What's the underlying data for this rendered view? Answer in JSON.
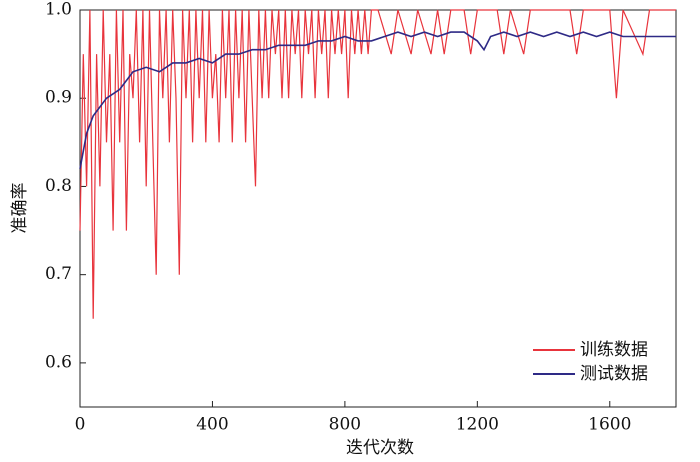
{
  "chart_data": {
    "type": "line",
    "xlabel": "迭代次数",
    "ylabel": "准确率",
    "xlim": [
      0,
      1800
    ],
    "xticks": [
      0,
      400,
      800,
      1200,
      1600
    ],
    "ylim": [
      0.55,
      1.0
    ],
    "yticks": [
      0.6,
      0.7,
      0.8,
      0.9,
      {
        "value": 1,
        "label": "1.0"
      }
    ],
    "legend": "lower right",
    "series": [
      {
        "name": "训练数据",
        "color": "#e8343c",
        "x": [
          0,
          10,
          20,
          30,
          40,
          50,
          60,
          70,
          80,
          90,
          100,
          110,
          120,
          130,
          140,
          150,
          160,
          170,
          180,
          190,
          200,
          210,
          220,
          230,
          240,
          250,
          260,
          270,
          280,
          290,
          300,
          310,
          320,
          330,
          340,
          350,
          360,
          370,
          380,
          390,
          400,
          410,
          420,
          430,
          440,
          450,
          460,
          470,
          480,
          490,
          500,
          510,
          520,
          530,
          540,
          550,
          560,
          570,
          580,
          590,
          600,
          610,
          620,
          630,
          640,
          650,
          660,
          670,
          680,
          690,
          700,
          710,
          720,
          730,
          740,
          750,
          760,
          770,
          780,
          790,
          800,
          810,
          820,
          830,
          840,
          850,
          860,
          870,
          880,
          900,
          940,
          960,
          1000,
          1020,
          1060,
          1080,
          1100,
          1120,
          1160,
          1180,
          1200,
          1260,
          1280,
          1300,
          1340,
          1360,
          1480,
          1500,
          1520,
          1600,
          1620,
          1640,
          1700,
          1720,
          1800
        ],
        "values": [
          0.75,
          0.95,
          0.8,
          1.0,
          0.65,
          0.95,
          0.8,
          1.0,
          0.85,
          0.95,
          0.75,
          1.0,
          0.85,
          1.0,
          0.75,
          0.95,
          0.9,
          1.0,
          0.85,
          1.0,
          0.8,
          1.0,
          0.85,
          0.7,
          1.0,
          0.9,
          1.0,
          0.85,
          1.0,
          0.9,
          0.7,
          1.0,
          0.9,
          1.0,
          0.85,
          1.0,
          0.9,
          1.0,
          0.85,
          1.0,
          0.9,
          0.95,
          0.85,
          1.0,
          0.9,
          1.0,
          0.85,
          1.0,
          0.9,
          1.0,
          0.85,
          1.0,
          0.9,
          0.8,
          1.0,
          0.9,
          1.0,
          0.9,
          1.0,
          0.95,
          1.0,
          0.9,
          1.0,
          0.9,
          1.0,
          0.95,
          1.0,
          0.9,
          1.0,
          0.95,
          1.0,
          0.9,
          1.0,
          0.95,
          1.0,
          0.9,
          1.0,
          0.95,
          1.0,
          0.95,
          1.0,
          0.9,
          1.0,
          0.95,
          1.0,
          0.95,
          1.0,
          0.95,
          1.0,
          1.0,
          0.95,
          1.0,
          0.95,
          1.0,
          0.95,
          1.0,
          0.95,
          1.0,
          1.0,
          0.95,
          1.0,
          1.0,
          0.95,
          1.0,
          0.95,
          1.0,
          1.0,
          0.95,
          1.0,
          1.0,
          0.9,
          1.0,
          0.95,
          1.0,
          1.0
        ]
      },
      {
        "name": "测试数据",
        "color": "#2e2a86",
        "x": [
          0,
          20,
          40,
          80,
          120,
          160,
          200,
          240,
          280,
          320,
          360,
          400,
          440,
          480,
          520,
          560,
          600,
          640,
          680,
          720,
          760,
          800,
          840,
          880,
          920,
          960,
          1000,
          1040,
          1080,
          1120,
          1160,
          1200,
          1220,
          1240,
          1280,
          1320,
          1360,
          1400,
          1440,
          1480,
          1520,
          1560,
          1600,
          1640,
          1680,
          1720,
          1760,
          1800
        ],
        "values": [
          0.82,
          0.86,
          0.88,
          0.9,
          0.91,
          0.93,
          0.935,
          0.93,
          0.94,
          0.94,
          0.945,
          0.94,
          0.95,
          0.95,
          0.955,
          0.955,
          0.96,
          0.96,
          0.96,
          0.965,
          0.965,
          0.97,
          0.965,
          0.965,
          0.97,
          0.975,
          0.97,
          0.975,
          0.97,
          0.975,
          0.975,
          0.965,
          0.955,
          0.97,
          0.975,
          0.97,
          0.975,
          0.97,
          0.975,
          0.97,
          0.975,
          0.97,
          0.975,
          0.97,
          0.97,
          0.97,
          0.97,
          0.97
        ]
      }
    ]
  }
}
